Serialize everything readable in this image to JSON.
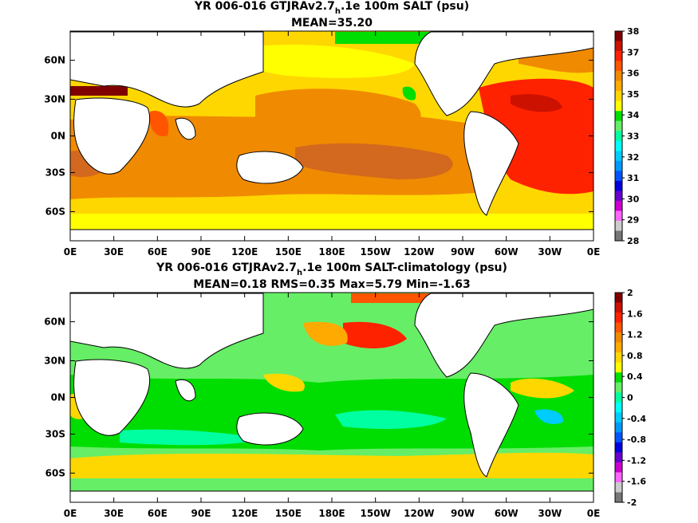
{
  "chart_data": [
    {
      "type": "heatmap",
      "title_pre": "YR 006-016 GTJRAv2.7",
      "title_sub": "h",
      "title_post": ".1e 100m SALT (psu)",
      "subtitle": "MEAN=35.20",
      "x_ticks": [
        "0E",
        "30E",
        "60E",
        "90E",
        "120E",
        "150E",
        "180E",
        "150W",
        "120W",
        "90W",
        "60W",
        "30W",
        "0E"
      ],
      "y_ticks": [
        "60N",
        "30N",
        "0N",
        "30S",
        "60S"
      ],
      "colorbar": {
        "labels": [
          "38",
          "37",
          "36",
          "35",
          "34",
          "33",
          "32",
          "31",
          "30",
          "29",
          "28"
        ],
        "colors": [
          "#800000",
          "#cc1100",
          "#ff2200",
          "#ff5500",
          "#f08a00",
          "#ffaa00",
          "#ffd700",
          "#ffff00",
          "#00dd00",
          "#66ee66",
          "#00ffa0",
          "#00ffff",
          "#00ccff",
          "#0099ff",
          "#0055ff",
          "#0000dd",
          "#6600cc",
          "#cc00cc",
          "#ff66ff",
          "#cccccc",
          "#777777"
        ]
      }
    },
    {
      "type": "heatmap",
      "title_pre": "YR 006-016 GTJRAv2.7",
      "title_sub": "h",
      "title_post": ".1e 100m SALT-climatology (psu)",
      "subtitle": "MEAN=0.18   RMS=0.35   Max=5.79   Min=-1.63",
      "x_ticks": [
        "0E",
        "30E",
        "60E",
        "90E",
        "120E",
        "150E",
        "180E",
        "150W",
        "120W",
        "90W",
        "60W",
        "30W",
        "0E"
      ],
      "y_ticks": [
        "60N",
        "30N",
        "0N",
        "30S",
        "60S"
      ],
      "colorbar": {
        "labels": [
          "2",
          "1.6",
          "1.2",
          "0.8",
          "0.4",
          "0",
          "-0.4",
          "-0.8",
          "-1.2",
          "-1.6",
          "-2"
        ],
        "colors": [
          "#800000",
          "#cc1100",
          "#ff2200",
          "#ff5500",
          "#f08a00",
          "#ffaa00",
          "#ffd700",
          "#ffff00",
          "#00dd00",
          "#66ee66",
          "#00ffa0",
          "#00ffff",
          "#00ccff",
          "#0099ff",
          "#0055ff",
          "#0000dd",
          "#6600cc",
          "#cc00cc",
          "#ff66ff",
          "#cccccc",
          "#777777"
        ]
      }
    }
  ]
}
